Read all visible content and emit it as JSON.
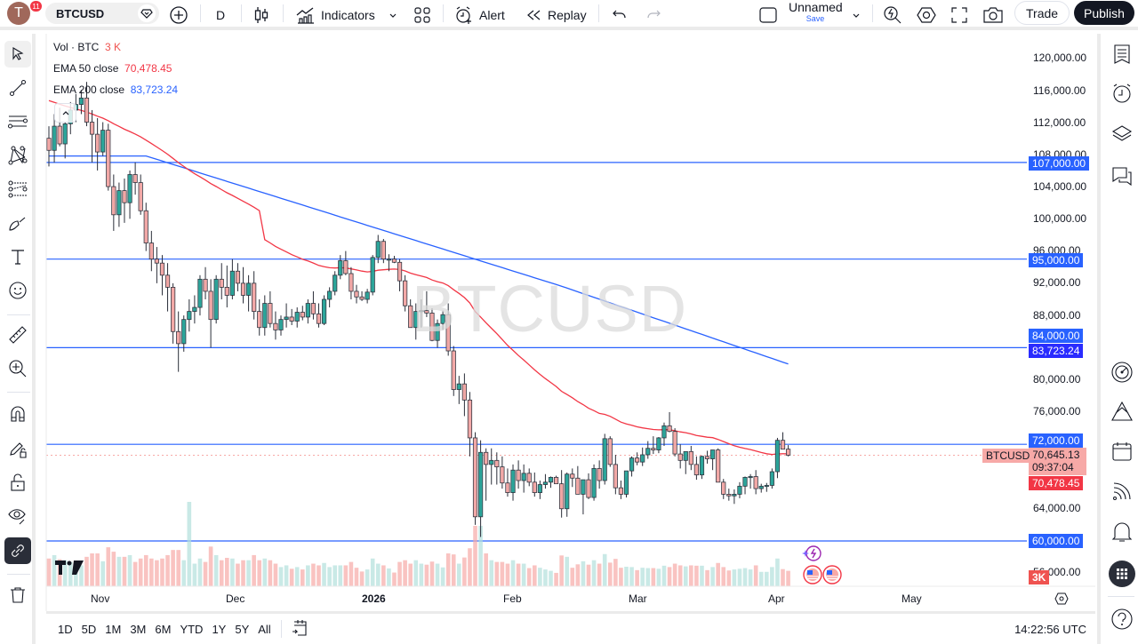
{
  "topbar": {
    "avatar_letter": "T",
    "notifications": "11",
    "symbol": "BTCUSD",
    "interval": "D",
    "indicators_label": "Indicators",
    "alert_label": "Alert",
    "replay_label": "Replay",
    "layout_name": "Unnamed",
    "save_label": "Save",
    "trade_label": "Trade",
    "publish_label": "Publish"
  },
  "legend": {
    "vol_label": "Vol · BTC",
    "vol_value": "3 K",
    "ema50_label": "EMA 50 close",
    "ema50_value": "70,478.45",
    "ema200_label": "EMA 200 close",
    "ema200_value": "83,723.24"
  },
  "watermark": "BTCUSD",
  "price_axis": {
    "ticks": [
      "120,000.00",
      "116,000.00",
      "112,000.00",
      "108,000.00",
      "104,000.00",
      "100,000.00",
      "96,000.00",
      "92,000.00",
      "88,000.00",
      "80,000.00",
      "76,000.00",
      "64,000.00",
      "56,000.00"
    ],
    "tags": {
      "l107": "107,000.00",
      "l95": "95,000.00",
      "l84": "84,000.00",
      "ema200": "83,723.24",
      "l72": "72,000.00",
      "last": "70,645.13",
      "countdown": "09:37:04",
      "ema50": "70,478.45",
      "l60": "60,000.00",
      "vol": "3K",
      "symbol_tag": "BTCUSD"
    }
  },
  "time_axis": [
    "Nov",
    "Dec",
    "2026",
    "Feb",
    "Mar",
    "Apr",
    "May"
  ],
  "bottombar": {
    "ranges": [
      "1D",
      "5D",
      "1M",
      "3M",
      "6M",
      "YTD",
      "1Y",
      "5Y",
      "All"
    ],
    "clock": "14:22:56 UTC"
  },
  "colors": {
    "up": "#26a69a",
    "down": "#ef5350",
    "up_fill": "#b2dfdb",
    "down_fill": "#f7a9a7",
    "ema50": "#f23645",
    "ema200": "#2962ff",
    "hline": "#2962ff"
  },
  "chart_data": {
    "type": "candlestick",
    "title": "BTCUSD, 1D",
    "y_range": [
      52000,
      123000
    ],
    "horizontal_lines": [
      107000,
      95000,
      84000,
      72000,
      60000
    ],
    "last_price": 70645.13,
    "ema50": 70478.45,
    "ema200": 83723.24,
    "candles": [
      [
        110000,
        111500,
        106500,
        108500
      ],
      [
        108500,
        113000,
        107000,
        111500
      ],
      [
        111500,
        113800,
        109000,
        109300
      ],
      [
        109300,
        112000,
        107500,
        111800
      ],
      [
        111800,
        114500,
        110500,
        113500
      ],
      [
        113500,
        115500,
        112000,
        114200
      ],
      [
        114200,
        116000,
        113000,
        115000
      ],
      [
        115000,
        117000,
        111500,
        112000
      ],
      [
        112000,
        113500,
        107000,
        110500
      ],
      [
        110500,
        112500,
        106000,
        108300
      ],
      [
        108300,
        112000,
        107800,
        111000
      ],
      [
        111000,
        111800,
        103500,
        104000
      ],
      [
        104000,
        105500,
        98500,
        100500
      ],
      [
        100500,
        104500,
        99000,
        103500
      ],
      [
        103500,
        105000,
        99500,
        102000
      ],
      [
        102000,
        106000,
        100000,
        105500
      ],
      [
        105500,
        107000,
        103000,
        104500
      ],
      [
        104500,
        105500,
        100500,
        101000
      ],
      [
        101000,
        102000,
        96000,
        97000
      ],
      [
        97000,
        98500,
        93500,
        95000
      ],
      [
        95000,
        96500,
        92000,
        94500
      ],
      [
        94500,
        95500,
        90500,
        93000
      ],
      [
        93000,
        94500,
        88500,
        91500
      ],
      [
        91500,
        92000,
        84500,
        86000
      ],
      [
        86000,
        88500,
        81000,
        84500
      ],
      [
        84500,
        88000,
        83500,
        87500
      ],
      [
        87500,
        90000,
        86000,
        88500
      ],
      [
        88500,
        90500,
        87000,
        89000
      ],
      [
        89000,
        93000,
        88000,
        92500
      ],
      [
        92500,
        94000,
        90000,
        91000
      ],
      [
        91000,
        92500,
        84000,
        87500
      ],
      [
        87500,
        93000,
        87000,
        92500
      ],
      [
        92500,
        94500,
        90000,
        91500
      ],
      [
        91500,
        94200,
        89000,
        90500
      ],
      [
        90500,
        95000,
        90000,
        93500
      ],
      [
        93500,
        94500,
        91000,
        92000
      ],
      [
        92000,
        94000,
        89500,
        90500
      ],
      [
        90500,
        93000,
        88500,
        92000
      ],
      [
        92000,
        93500,
        87500,
        88500
      ],
      [
        88500,
        90000,
        85500,
        86500
      ],
      [
        86500,
        90500,
        85500,
        89500
      ],
      [
        89500,
        91000,
        86500,
        87000
      ],
      [
        87000,
        88500,
        85000,
        86200
      ],
      [
        86200,
        88000,
        85500,
        87500
      ],
      [
        87500,
        89500,
        86500,
        87800
      ],
      [
        87800,
        88800,
        86800,
        87300
      ],
      [
        87300,
        89000,
        86500,
        88400
      ],
      [
        88400,
        89200,
        87400,
        87800
      ],
      [
        87800,
        90000,
        87000,
        89500
      ],
      [
        89500,
        91000,
        87500,
        88200
      ],
      [
        88200,
        89500,
        86500,
        87000
      ],
      [
        87000,
        90500,
        86800,
        90000
      ],
      [
        90000,
        91500,
        89000,
        91000
      ],
      [
        91000,
        93500,
        90500,
        93000
      ],
      [
        93000,
        95500,
        92500,
        94800
      ],
      [
        94800,
        96000,
        93000,
        93200
      ],
      [
        93200,
        94000,
        90000,
        91000
      ],
      [
        91000,
        91800,
        89500,
        90300
      ],
      [
        90300,
        91000,
        89800,
        90000
      ],
      [
        90000,
        91300,
        89500,
        90900
      ],
      [
        90900,
        95500,
        90500,
        95200
      ],
      [
        95200,
        98000,
        94500,
        97200
      ],
      [
        97200,
        97500,
        94500,
        95000
      ],
      [
        95000,
        95600,
        93500,
        95000
      ],
      [
        95000,
        95400,
        94500,
        94600
      ],
      [
        94600,
        95000,
        91000,
        92300
      ],
      [
        92300,
        93000,
        88500,
        89200
      ],
      [
        89200,
        90000,
        86500,
        86500
      ],
      [
        86500,
        89500,
        85000,
        88500
      ],
      [
        88500,
        90000,
        86500,
        88600
      ],
      [
        88600,
        91000,
        87800,
        88300
      ],
      [
        88300,
        88900,
        84800,
        84900
      ],
      [
        84900,
        87500,
        84000,
        87000
      ],
      [
        87000,
        88600,
        86200,
        88100
      ],
      [
        88100,
        89500,
        83000,
        83600
      ],
      [
        83600,
        84200,
        78000,
        78800
      ],
      [
        78800,
        80500,
        77000,
        79500
      ],
      [
        79500,
        80800,
        75500,
        77500
      ],
      [
        77500,
        78500,
        70500,
        72800
      ],
      [
        72800,
        73500,
        62000,
        63000
      ],
      [
        63000,
        72500,
        60500,
        71000
      ],
      [
        71000,
        71500,
        65000,
        69500
      ],
      [
        69500,
        71500,
        67000,
        70000
      ],
      [
        70000,
        71000,
        67000,
        69200
      ],
      [
        69200,
        70500,
        66500,
        67200
      ],
      [
        67200,
        69000,
        65500,
        66000
      ],
      [
        66000,
        69500,
        65000,
        68800
      ],
      [
        68800,
        70000,
        66500,
        67500
      ],
      [
        67500,
        69500,
        66000,
        68400
      ],
      [
        68400,
        69000,
        66800,
        67300
      ],
      [
        67300,
        68500,
        65500,
        66000
      ],
      [
        66000,
        67500,
        65200,
        67000
      ],
      [
        67000,
        68300,
        66500,
        67300
      ],
      [
        67300,
        68000,
        66600,
        67900
      ],
      [
        67900,
        68100,
        67300,
        67100
      ],
      [
        67100,
        68800,
        62900,
        64000
      ],
      [
        64000,
        68500,
        63000,
        68300
      ],
      [
        68300,
        69000,
        66700,
        67800
      ],
      [
        67800,
        69300,
        66000,
        65800
      ],
      [
        65800,
        67500,
        63300,
        67600
      ],
      [
        67600,
        68400,
        65200,
        65400
      ],
      [
        65400,
        69500,
        65000,
        69000
      ],
      [
        69000,
        70000,
        66500,
        67500
      ],
      [
        67500,
        73300,
        67000,
        72700
      ],
      [
        72700,
        73000,
        69200,
        69500
      ],
      [
        69500,
        70700,
        65800,
        66600
      ],
      [
        66600,
        67500,
        65200,
        65800
      ],
      [
        65800,
        68000,
        65400,
        68700
      ],
      [
        68700,
        70500,
        68000,
        70300
      ],
      [
        70300,
        71000,
        69400,
        69800
      ],
      [
        69800,
        71600,
        69300,
        70700
      ],
      [
        70700,
        72400,
        70200,
        71500
      ],
      [
        71500,
        73000,
        70800,
        71300
      ],
      [
        71300,
        72900,
        70900,
        72800
      ],
      [
        72800,
        74700,
        71800,
        74300
      ],
      [
        74300,
        76000,
        73500,
        73600
      ],
      [
        73600,
        74000,
        70500,
        70800
      ],
      [
        70800,
        72000,
        69000,
        70000
      ],
      [
        70000,
        71000,
        68300,
        71100
      ],
      [
        71100,
        71800,
        68800,
        69500
      ],
      [
        69500,
        70500,
        67600,
        68200
      ],
      [
        68200,
        70600,
        67700,
        70500
      ],
      [
        70500,
        71200,
        69600,
        70200
      ],
      [
        70200,
        71300,
        68800,
        71300
      ],
      [
        71300,
        71500,
        67800,
        67300
      ],
      [
        67300,
        67700,
        65200,
        65800
      ],
      [
        65800,
        66500,
        65000,
        65600
      ],
      [
        65600,
        66400,
        64600,
        65800
      ],
      [
        65800,
        67300,
        65300,
        66800
      ],
      [
        66800,
        68000,
        65800,
        67900
      ],
      [
        67900,
        68300,
        66500,
        68000
      ],
      [
        68000,
        68800,
        65800,
        66500
      ],
      [
        66500,
        67100,
        66000,
        66800
      ],
      [
        66800,
        67200,
        66100,
        66900
      ],
      [
        66900,
        69000,
        66500,
        68600
      ],
      [
        68600,
        72800,
        67800,
        72500
      ],
      [
        72500,
        73500,
        71600,
        71400
      ],
      [
        71400,
        71900,
        70500,
        70645
      ]
    ],
    "volume_labels": "approximate relative volume per candle (bars in volume pane)"
  }
}
